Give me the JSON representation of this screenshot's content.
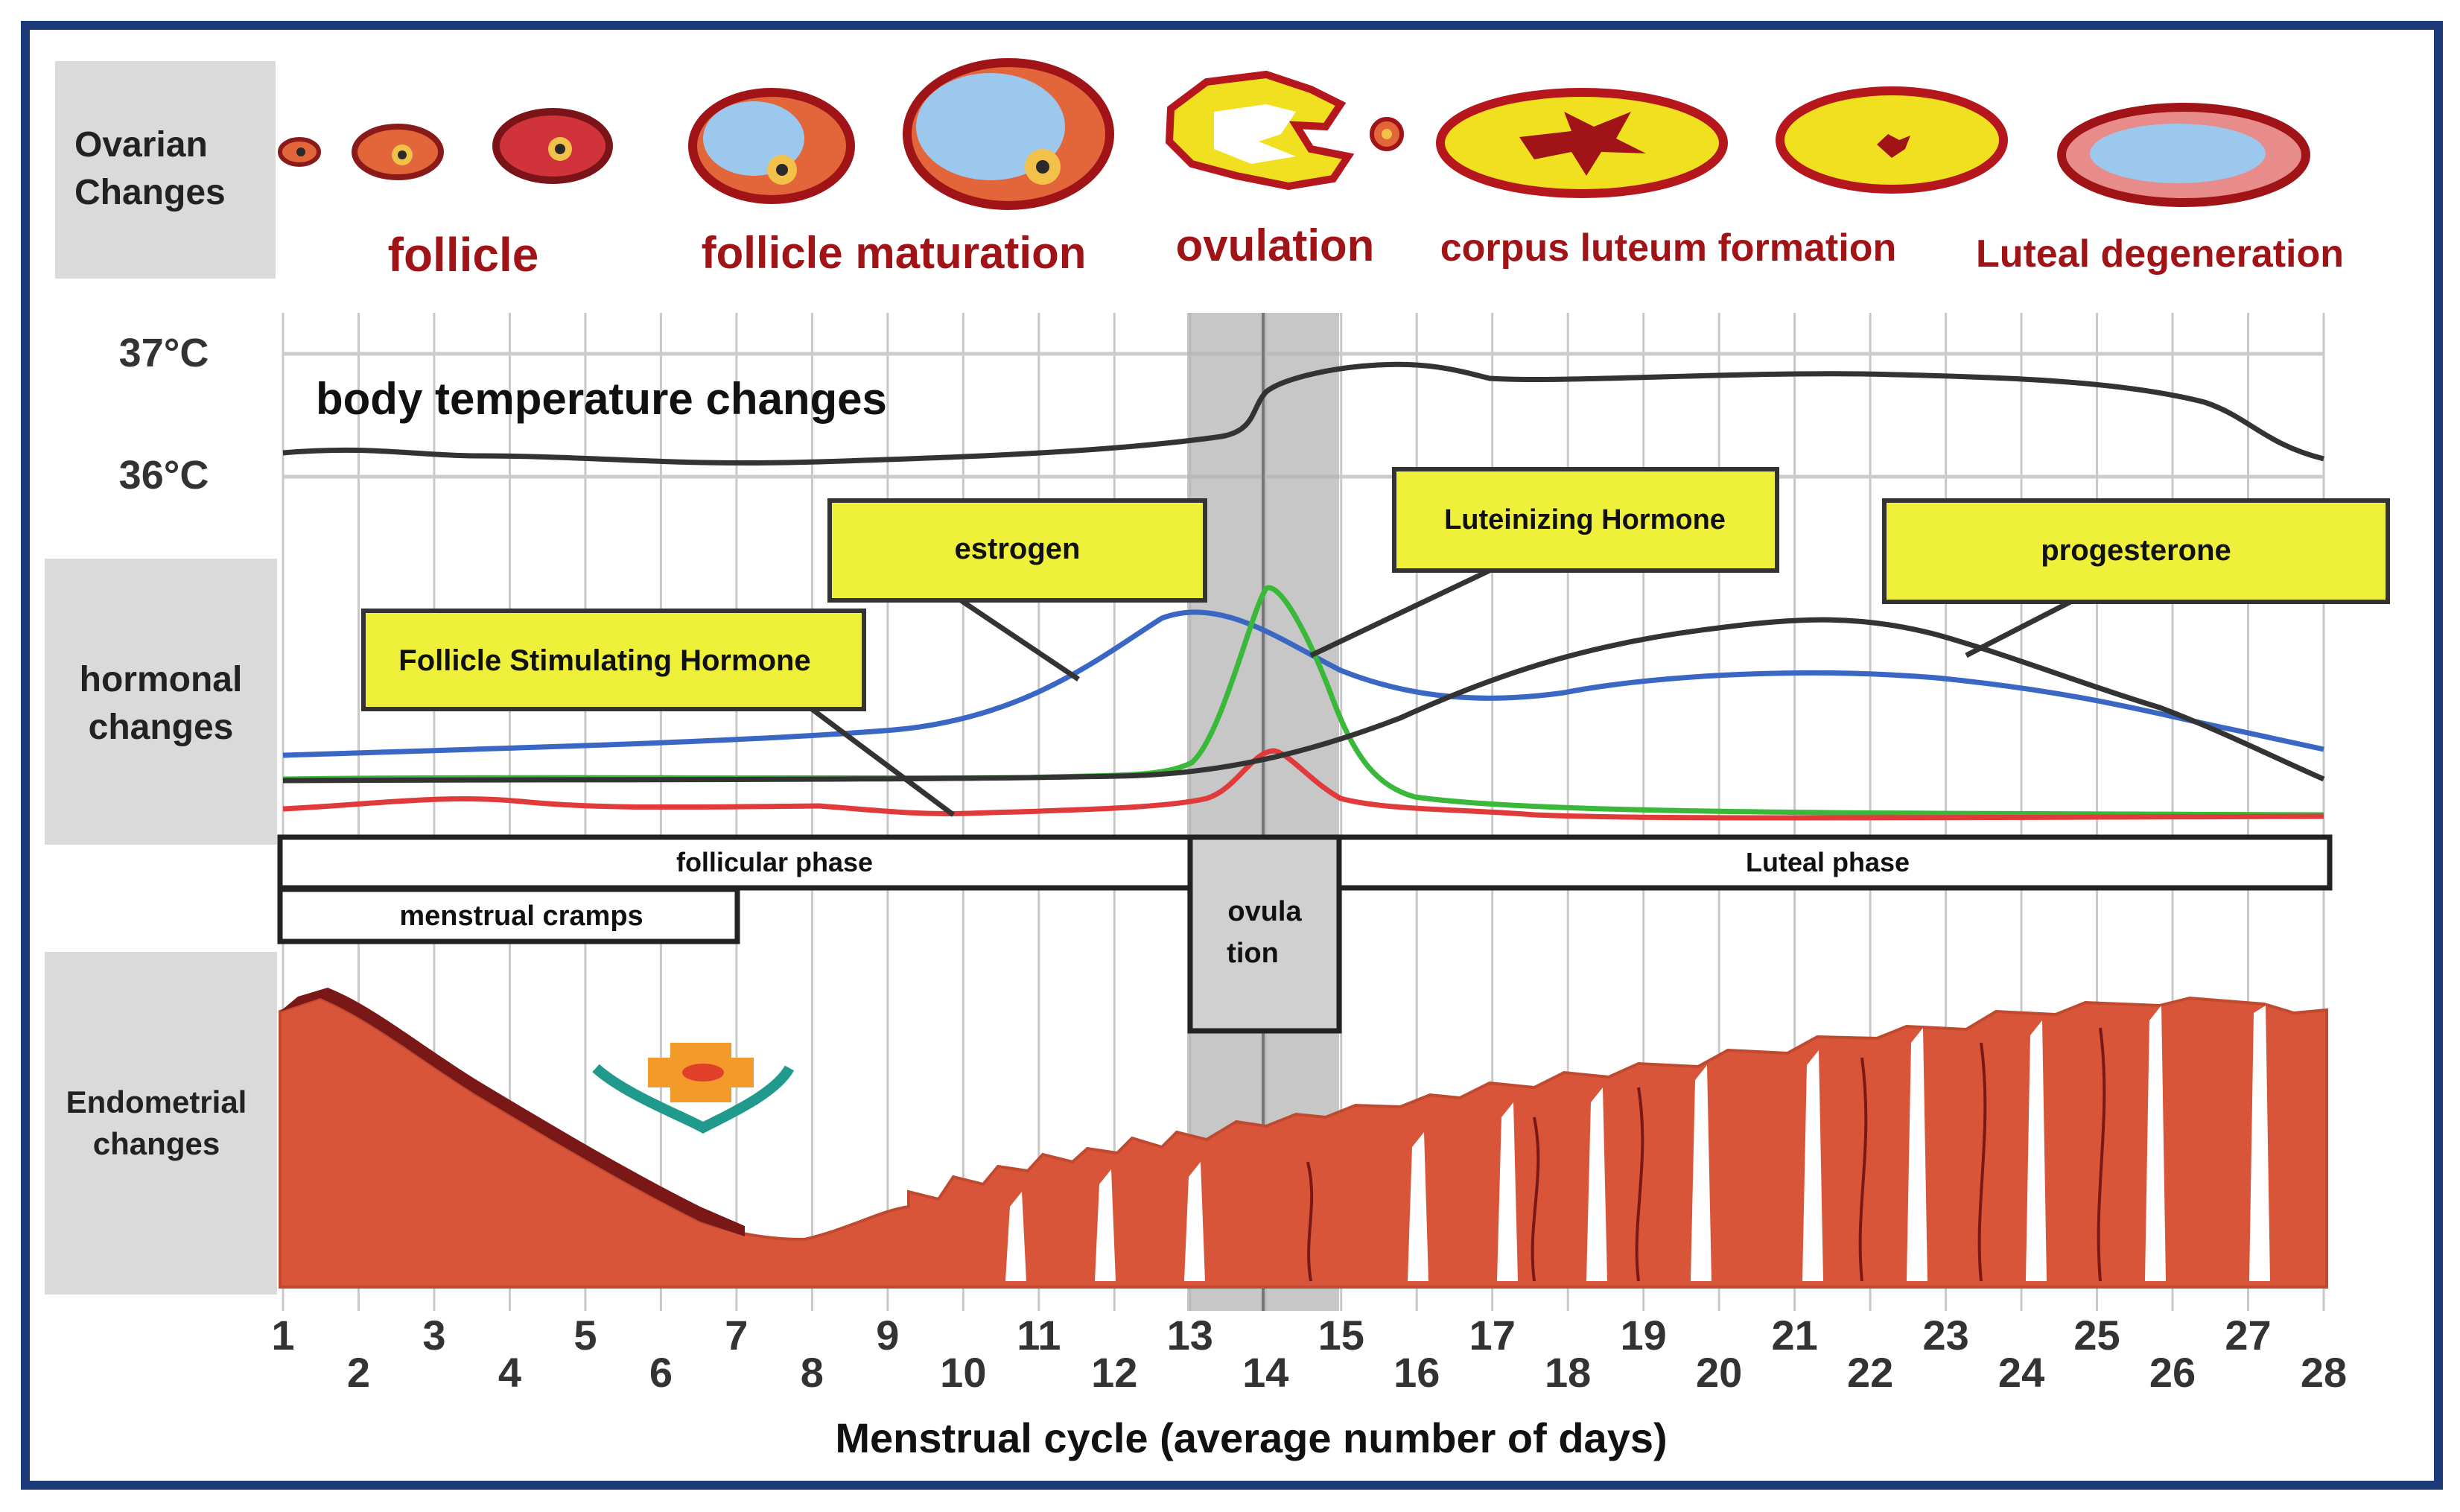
{
  "ovarian": {
    "section_label": [
      "Ovarian",
      "Changes"
    ],
    "stage_labels": [
      "follicle",
      "follicle maturation",
      "ovulation",
      "corpus luteum formation",
      "Luteal degeneration"
    ]
  },
  "temperature": {
    "ticks": [
      "37°C",
      "36°C"
    ],
    "title": "body temperature changes"
  },
  "hormones": {
    "section_label": [
      "hormonal",
      "changes"
    ],
    "callouts": {
      "fsh": "Follicle Stimulating Hormone",
      "estrogen": "estrogen",
      "lh": "Luteinizing Hormone",
      "progesterone": "progesterone"
    }
  },
  "phases": {
    "follicular": "follicular phase",
    "luteal": "Luteal phase",
    "cramps": "menstrual cramps",
    "ovulation": [
      "ovula",
      "tion"
    ]
  },
  "endometrium": {
    "section_label": [
      "Endometrial",
      "changes"
    ]
  },
  "days": {
    "odd": [
      "1",
      "3",
      "5",
      "7",
      "9",
      "11",
      "13",
      "15",
      "17",
      "19",
      "21",
      "23",
      "25",
      "27"
    ],
    "even": [
      "2",
      "4",
      "6",
      "8",
      "10",
      "12",
      "14",
      "16",
      "18",
      "20",
      "22",
      "24",
      "26",
      "28"
    ],
    "axis_title": "Menstrual cycle (average number of days)"
  },
  "colors": {
    "frame": "#1d3a78",
    "section_gray": "#dadada",
    "stage_red": "#a01418",
    "callout_yellow": "#eef03a",
    "estrogen_blue": "#3a66c4",
    "lh_green": "#3ab83a",
    "fsh_red": "#e03a3a",
    "progesterone_black": "#333333",
    "endometrium": "#d9553a"
  }
}
